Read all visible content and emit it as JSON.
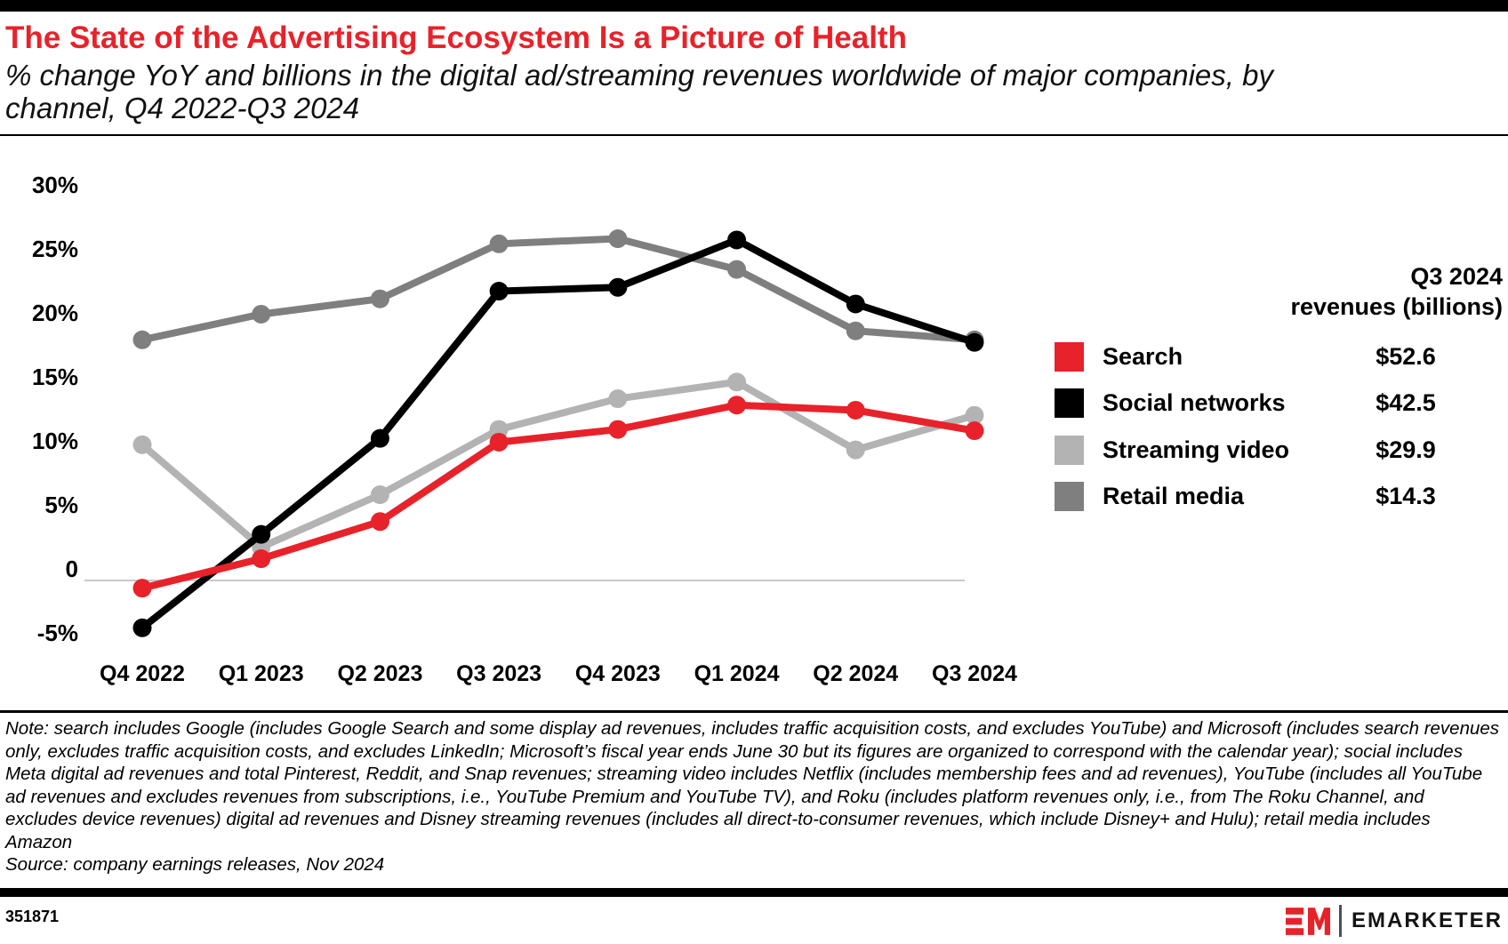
{
  "chart_data": {
    "type": "line",
    "title": "The State of the Advertising Ecosystem Is a Picture of Health",
    "subtitle_lines": [
      "% change YoY and billions in the digital ad/streaming revenues worldwide of major companies, by",
      "channel, Q4 2022-Q3 2024"
    ],
    "categories": [
      "Q4 2022",
      "Q1 2023",
      "Q2 2023",
      "Q3 2023",
      "Q4 2023",
      "Q1 2024",
      "Q2 2024",
      "Q3 2024"
    ],
    "unit": "% change YoY",
    "ylim": [
      -5,
      30
    ],
    "grid": "zero-line-only",
    "legend_position": "right",
    "y_ticks": [
      {
        "label": "30%",
        "value": 30
      },
      {
        "label": "25%",
        "value": 25
      },
      {
        "label": "20%",
        "value": 20
      },
      {
        "label": "15%",
        "value": 15
      },
      {
        "label": "10%",
        "value": 10
      },
      {
        "label": "5%",
        "value": 5
      },
      {
        "label": "0",
        "value": 0
      },
      {
        "label": "-5%",
        "value": -5
      }
    ],
    "series": [
      {
        "name": "Search",
        "color": "#e8222a",
        "revenue_q3_2024_billions": "$52.6",
        "values": [
          -0.6,
          1.7,
          4.6,
          10.8,
          11.8,
          13.7,
          13.3,
          11.7
        ]
      },
      {
        "name": "Social networks",
        "color": "#000000",
        "revenue_q3_2024_billions": "$42.5",
        "values": [
          -3.7,
          3.6,
          11.1,
          22.6,
          22.9,
          26.6,
          21.6,
          18.6
        ]
      },
      {
        "name": "Streaming video",
        "color": "#b3b3b3",
        "revenue_q3_2024_billions": "$29.9",
        "values": [
          10.6,
          2.6,
          6.7,
          11.8,
          14.2,
          15.5,
          10.2,
          12.9
        ]
      },
      {
        "name": "Retail media",
        "color": "#7f7f7f",
        "revenue_q3_2024_billions": "$14.3",
        "values": [
          18.8,
          20.8,
          22.0,
          26.3,
          26.7,
          24.3,
          19.5,
          18.8
        ]
      }
    ],
    "legend": {
      "header_lines": [
        "Q3 2024",
        "revenues (billions)"
      ]
    },
    "colors": {
      "accent_red": "#e8222a",
      "zero_gridline": "#c9c9c9"
    }
  },
  "note": {
    "text": "Note: search includes Google (includes Google Search and some display ad revenues, includes traffic acquisition costs, and excludes YouTube) and Microsoft (includes search revenues only, excludes traffic acquisition costs, and excludes LinkedIn; Microsoft’s fiscal year ends June 30 but its figures are organized to correspond with the calendar year); social includes Meta digital ad revenues and total Pinterest, Reddit, and Snap revenues; streaming video includes Netflix (includes membership fees and ad revenues), YouTube (includes all YouTube ad revenues and excludes revenues from subscriptions, i.e., YouTube Premium and YouTube TV), and Roku (includes platform revenues only, i.e., from The Roku Channel, and excludes device revenues) digital ad revenues and Disney streaming revenues (includes all direct-to-consumer revenues, which include Disney+ and Hulu); retail media includes Amazon",
    "source": "Source: company earnings releases, Nov 2024"
  },
  "footer": {
    "chart_id": "351871",
    "brand": "EMARKETER"
  }
}
